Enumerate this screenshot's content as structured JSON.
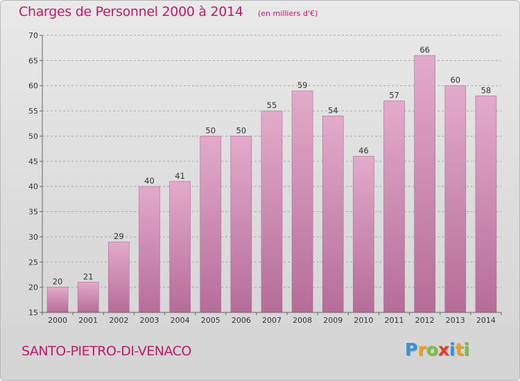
{
  "header": {
    "title": "Charges de Personnel 2000 à 2014",
    "subtitle": "(en milliers d'€)"
  },
  "footer": {
    "commune": "SANTO-PIETRO-DI-VENACO",
    "logo_text": "Proxiti",
    "logo_colors": [
      "#3a8fd8",
      "#f0a020",
      "#7ac143",
      "#e8382a",
      "#3a8fd8",
      "#f0a020",
      "#7ac143"
    ]
  },
  "colors": {
    "accent": "#c2186b",
    "bar_top": "#e3aacb",
    "bar_bottom": "#b56d98"
  },
  "chart_data": {
    "type": "bar",
    "title": "Charges de Personnel 2000 à 2014",
    "subtitle": "(en milliers d'€)",
    "xlabel": "",
    "ylabel": "",
    "categories": [
      "2000",
      "2001",
      "2002",
      "2003",
      "2004",
      "2005",
      "2006",
      "2007",
      "2008",
      "2009",
      "2010",
      "2011",
      "2012",
      "2013",
      "2014"
    ],
    "values": [
      20,
      21,
      29,
      40,
      41,
      50,
      50,
      55,
      59,
      54,
      46,
      57,
      66,
      60,
      58
    ],
    "ylim": [
      15,
      70
    ],
    "yticks": [
      15,
      20,
      25,
      30,
      35,
      40,
      45,
      50,
      55,
      60,
      65,
      70
    ],
    "grid": "horizontal-dashed",
    "legend": "none"
  }
}
